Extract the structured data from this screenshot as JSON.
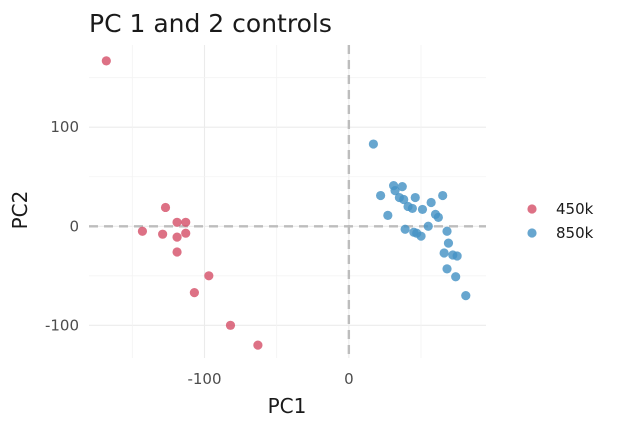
{
  "chart_data": {
    "type": "scatter",
    "title": "PC 1 and 2 controls",
    "xlabel": "PC1",
    "ylabel": "PC2",
    "xlim": [
      -180,
      95
    ],
    "ylim": [
      -133,
      183
    ],
    "x_ticks": [
      -100,
      0
    ],
    "y_ticks": [
      -100,
      0,
      100
    ],
    "x_tick_labels": [
      "-100",
      "0"
    ],
    "y_tick_labels": [
      "-100",
      "0",
      "100"
    ],
    "reference_lines": {
      "x": 0,
      "y": 0,
      "style": "dashed"
    },
    "grid": true,
    "legend_placement": "right",
    "series": [
      {
        "name": "450k",
        "color": "#d6526a",
        "points": [
          [
            -168,
            167
          ],
          [
            -143,
            -5
          ],
          [
            -127,
            19
          ],
          [
            -129,
            -8
          ],
          [
            -119,
            4
          ],
          [
            -119,
            -11
          ],
          [
            -113,
            4
          ],
          [
            -113,
            -7
          ],
          [
            -119,
            -26
          ],
          [
            -107,
            -67
          ],
          [
            -97,
            -50
          ],
          [
            -82,
            -100
          ],
          [
            -63,
            -120
          ]
        ]
      },
      {
        "name": "850k",
        "color": "#4692c4",
        "points": [
          [
            17,
            83
          ],
          [
            22,
            31
          ],
          [
            27,
            11
          ],
          [
            31,
            41
          ],
          [
            32,
            36
          ],
          [
            35,
            29
          ],
          [
            37,
            40
          ],
          [
            38,
            27
          ],
          [
            39,
            -3
          ],
          [
            41,
            20
          ],
          [
            44,
            18
          ],
          [
            46,
            29
          ],
          [
            45,
            -6
          ],
          [
            47,
            -7
          ],
          [
            50,
            -10
          ],
          [
            51,
            17
          ],
          [
            55,
            0
          ],
          [
            57,
            24
          ],
          [
            60,
            12
          ],
          [
            62,
            9
          ],
          [
            65,
            31
          ],
          [
            66,
            -27
          ],
          [
            68,
            -5
          ],
          [
            68,
            -43
          ],
          [
            69,
            -17
          ],
          [
            72,
            -29
          ],
          [
            74,
            -51
          ],
          [
            75,
            -30
          ],
          [
            81,
            -70
          ]
        ]
      }
    ]
  }
}
